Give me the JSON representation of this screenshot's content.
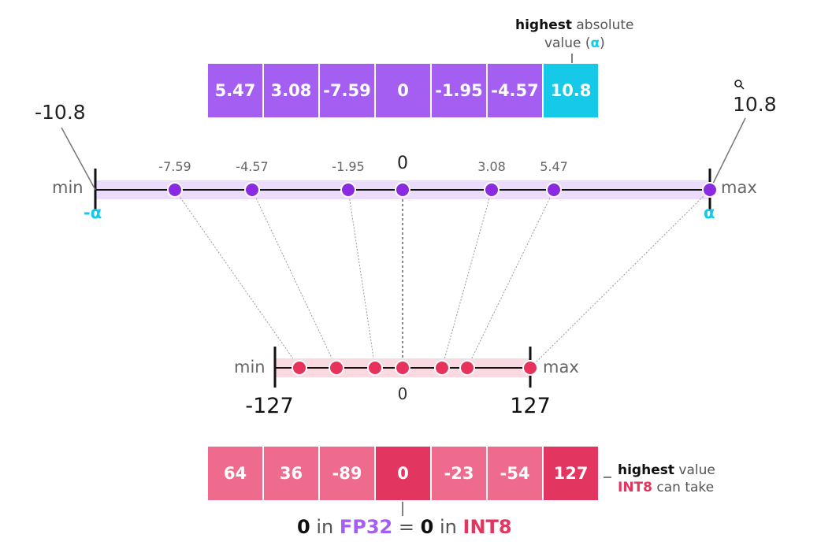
{
  "fp32_values": [
    "5.47",
    "3.08",
    "-7.59",
    "0",
    "-1.95",
    "-4.57",
    "10.8"
  ],
  "int8_values": [
    "64",
    "36",
    "-89",
    "0",
    "-23",
    "-54",
    "127"
  ],
  "top_callout": {
    "bold": "highest",
    "rest": "absolute",
    "line2": "value (",
    "alpha": "α",
    "close": ")"
  },
  "fp32_axis": {
    "min_label": "min",
    "max_label": "max",
    "left_value": "-10.8",
    "right_value": "10.8",
    "neg_alpha": "-α",
    "pos_alpha": "α",
    "zero_label": "0",
    "point_labels": [
      "-7.59",
      "-4.57",
      "-1.95",
      "3.08",
      "5.47"
    ]
  },
  "int8_axis": {
    "min_label": "min",
    "max_label": "max",
    "left_value": "-127",
    "right_value": "127",
    "zero_label": "0"
  },
  "bottom_callout": {
    "bold": "highest",
    "rest": "value",
    "int8": "INT8",
    "tail": "can take"
  },
  "caption": {
    "zero1": "0",
    "in1": "in",
    "fp32": "FP32",
    "eq": "=",
    "zero2": "0",
    "in2": "in",
    "int8": "INT8"
  },
  "colors": {
    "purple": "#a55ef2",
    "purple_dot": "#8a2be2",
    "cyan": "#16c9e8",
    "pink": "#ef6b8d",
    "pink_dark": "#e2355f",
    "pink_dot": "#e8325c"
  }
}
